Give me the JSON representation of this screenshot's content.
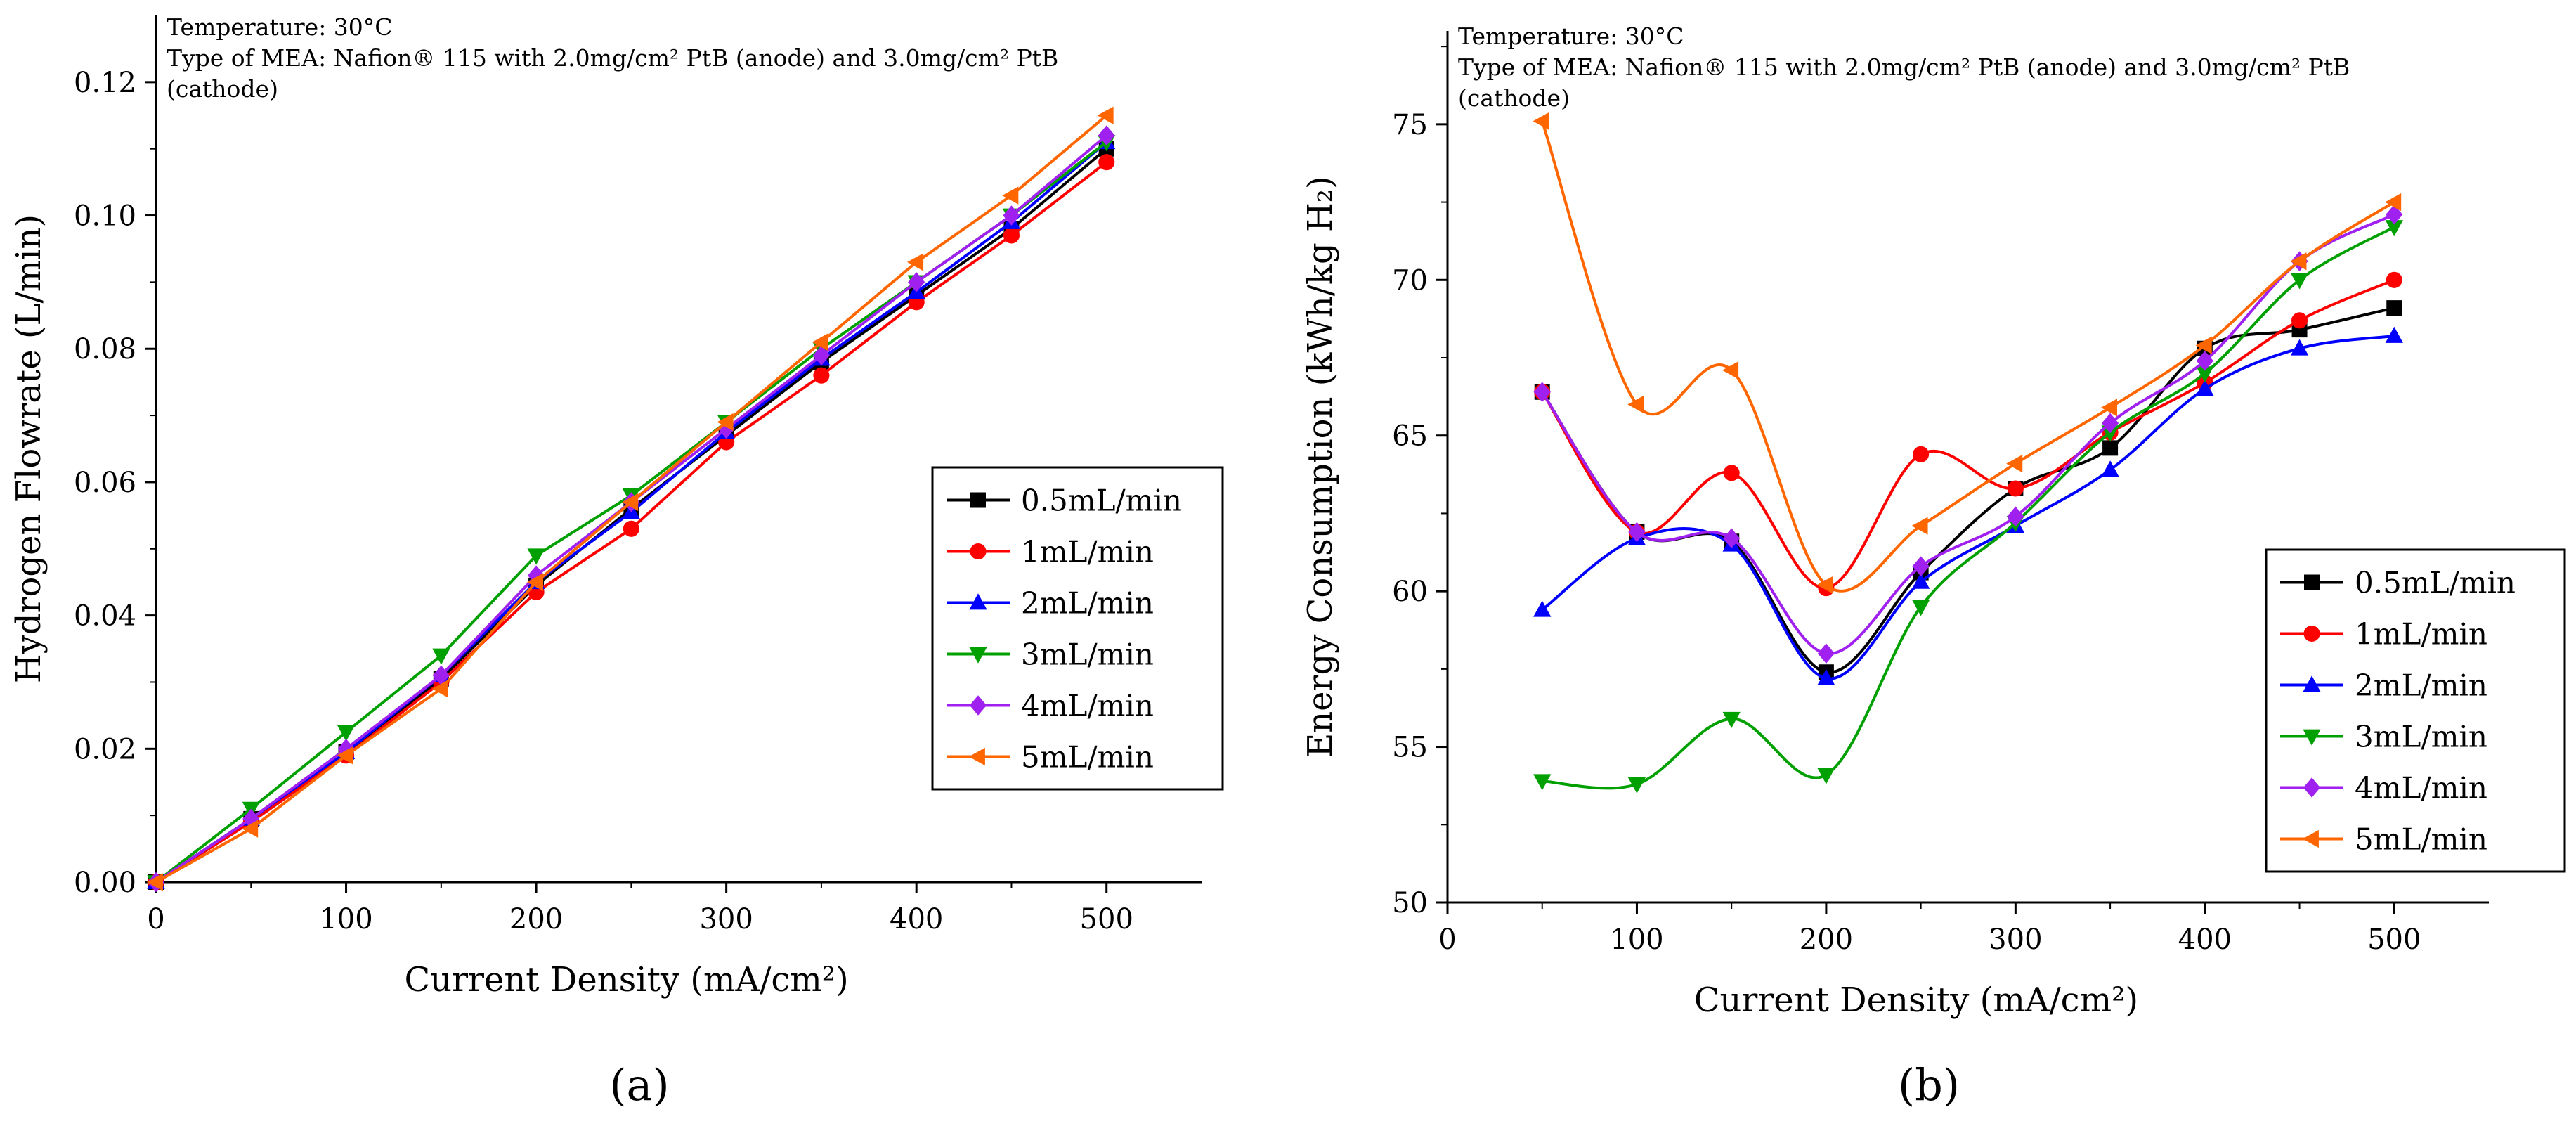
{
  "panel_labels": [
    "(a)",
    "(b)"
  ],
  "chart_data": [
    {
      "type": "line",
      "panel": "(a)",
      "annotation_lines": [
        "Temperature: 30°C",
        "Type of MEA: Nafion® 115 with 2.0mg/cm² PtB (anode) and 3.0mg/cm² PtB",
        "(cathode)"
      ],
      "xlabel": "Current Density (mA/cm²)",
      "ylabel": "Hydrogen Flowrate (L/min)",
      "xlim": [
        0,
        550
      ],
      "ylim": [
        0,
        0.13
      ],
      "xticks": [
        0,
        100,
        200,
        300,
        400,
        500
      ],
      "xtick_labels": [
        "0",
        "100",
        "200",
        "300",
        "400",
        "500"
      ],
      "yticks": [
        0,
        0.02,
        0.04,
        0.06,
        0.08,
        0.1,
        0.12
      ],
      "ytick_labels": [
        "0.00",
        "0.02",
        "0.04",
        "0.06",
        "0.08",
        "0.10",
        "0.12"
      ],
      "legend_position": "center-right",
      "x": [
        0,
        50,
        100,
        150,
        200,
        250,
        300,
        350,
        400,
        450,
        500
      ],
      "smooth": false,
      "series": [
        {
          "name": "0.5mL/min",
          "color": "#000000",
          "marker": "square",
          "values": [
            0,
            0.0095,
            0.0195,
            0.0305,
            0.0445,
            0.056,
            0.067,
            0.078,
            0.088,
            0.098,
            0.11
          ]
        },
        {
          "name": "1mL/min",
          "color": "#ff0000",
          "marker": "circle",
          "values": [
            0,
            0.009,
            0.019,
            0.03,
            0.0435,
            0.053,
            0.066,
            0.076,
            0.087,
            0.097,
            0.108
          ]
        },
        {
          "name": "2mL/min",
          "color": "#0000ff",
          "marker": "triangle-up",
          "values": [
            0,
            0.0095,
            0.0195,
            0.031,
            0.045,
            0.0555,
            0.0675,
            0.0785,
            0.0885,
            0.099,
            0.111
          ]
        },
        {
          "name": "3mL/min",
          "color": "#00a000",
          "marker": "triangle-down",
          "values": [
            0,
            0.011,
            0.0225,
            0.034,
            0.049,
            0.058,
            0.069,
            0.08,
            0.09,
            0.1,
            0.111
          ]
        },
        {
          "name": "4mL/min",
          "color": "#a020f0",
          "marker": "diamond",
          "values": [
            0,
            0.0095,
            0.02,
            0.031,
            0.046,
            0.057,
            0.068,
            0.079,
            0.09,
            0.1,
            0.112
          ]
        },
        {
          "name": "5mL/min",
          "color": "#ff6600",
          "marker": "triangle-left",
          "values": [
            0,
            0.008,
            0.019,
            0.029,
            0.045,
            0.057,
            0.069,
            0.081,
            0.093,
            0.103,
            0.115
          ]
        }
      ]
    },
    {
      "type": "line",
      "panel": "(b)",
      "annotation_lines": [
        "Temperature: 30°C",
        "Type of MEA: Nafion® 115 with 2.0mg/cm² PtB (anode) and 3.0mg/cm² PtB",
        "(cathode)"
      ],
      "xlabel": "Current Density (mA/cm²)",
      "ylabel": "Energy Consumption (kWh/kg H₂)",
      "xlim": [
        0,
        550
      ],
      "ylim": [
        50,
        78
      ],
      "xticks": [
        0,
        100,
        200,
        300,
        400,
        500
      ],
      "xtick_labels": [
        "0",
        "100",
        "200",
        "300",
        "400",
        "500"
      ],
      "yticks": [
        50,
        55,
        60,
        65,
        70,
        75
      ],
      "ytick_labels": [
        "50",
        "55",
        "60",
        "65",
        "70",
        "75"
      ],
      "legend_position": "bottom-right",
      "x": [
        50,
        100,
        150,
        200,
        250,
        300,
        350,
        400,
        450,
        500
      ],
      "smooth": true,
      "series": [
        {
          "name": "0.5mL/min",
          "color": "#000000",
          "marker": "square",
          "values": [
            66.4,
            61.9,
            61.6,
            57.4,
            60.6,
            63.3,
            64.6,
            67.8,
            68.4,
            69.1
          ]
        },
        {
          "name": "1mL/min",
          "color": "#ff0000",
          "marker": "circle",
          "values": [
            66.4,
            61.9,
            63.8,
            60.1,
            64.4,
            63.3,
            65.1,
            66.7,
            68.7,
            70.0
          ]
        },
        {
          "name": "2mL/min",
          "color": "#0000ff",
          "marker": "triangle-up",
          "values": [
            59.4,
            61.7,
            61.5,
            57.2,
            60.3,
            62.1,
            63.9,
            66.5,
            67.8,
            68.2
          ]
        },
        {
          "name": "3mL/min",
          "color": "#00a000",
          "marker": "triangle-down",
          "values": [
            53.9,
            53.8,
            55.9,
            54.1,
            59.5,
            62.2,
            65.1,
            67.0,
            70.0,
            71.7
          ]
        },
        {
          "name": "4mL/min",
          "color": "#a020f0",
          "marker": "diamond",
          "values": [
            66.4,
            61.9,
            61.7,
            58.0,
            60.8,
            62.4,
            65.4,
            67.4,
            70.6,
            72.1
          ]
        },
        {
          "name": "5mL/min",
          "color": "#ff6600",
          "marker": "triangle-left",
          "values": [
            75.1,
            66.0,
            67.1,
            60.2,
            62.1,
            64.1,
            65.9,
            67.9,
            70.6,
            72.5
          ]
        }
      ]
    }
  ]
}
